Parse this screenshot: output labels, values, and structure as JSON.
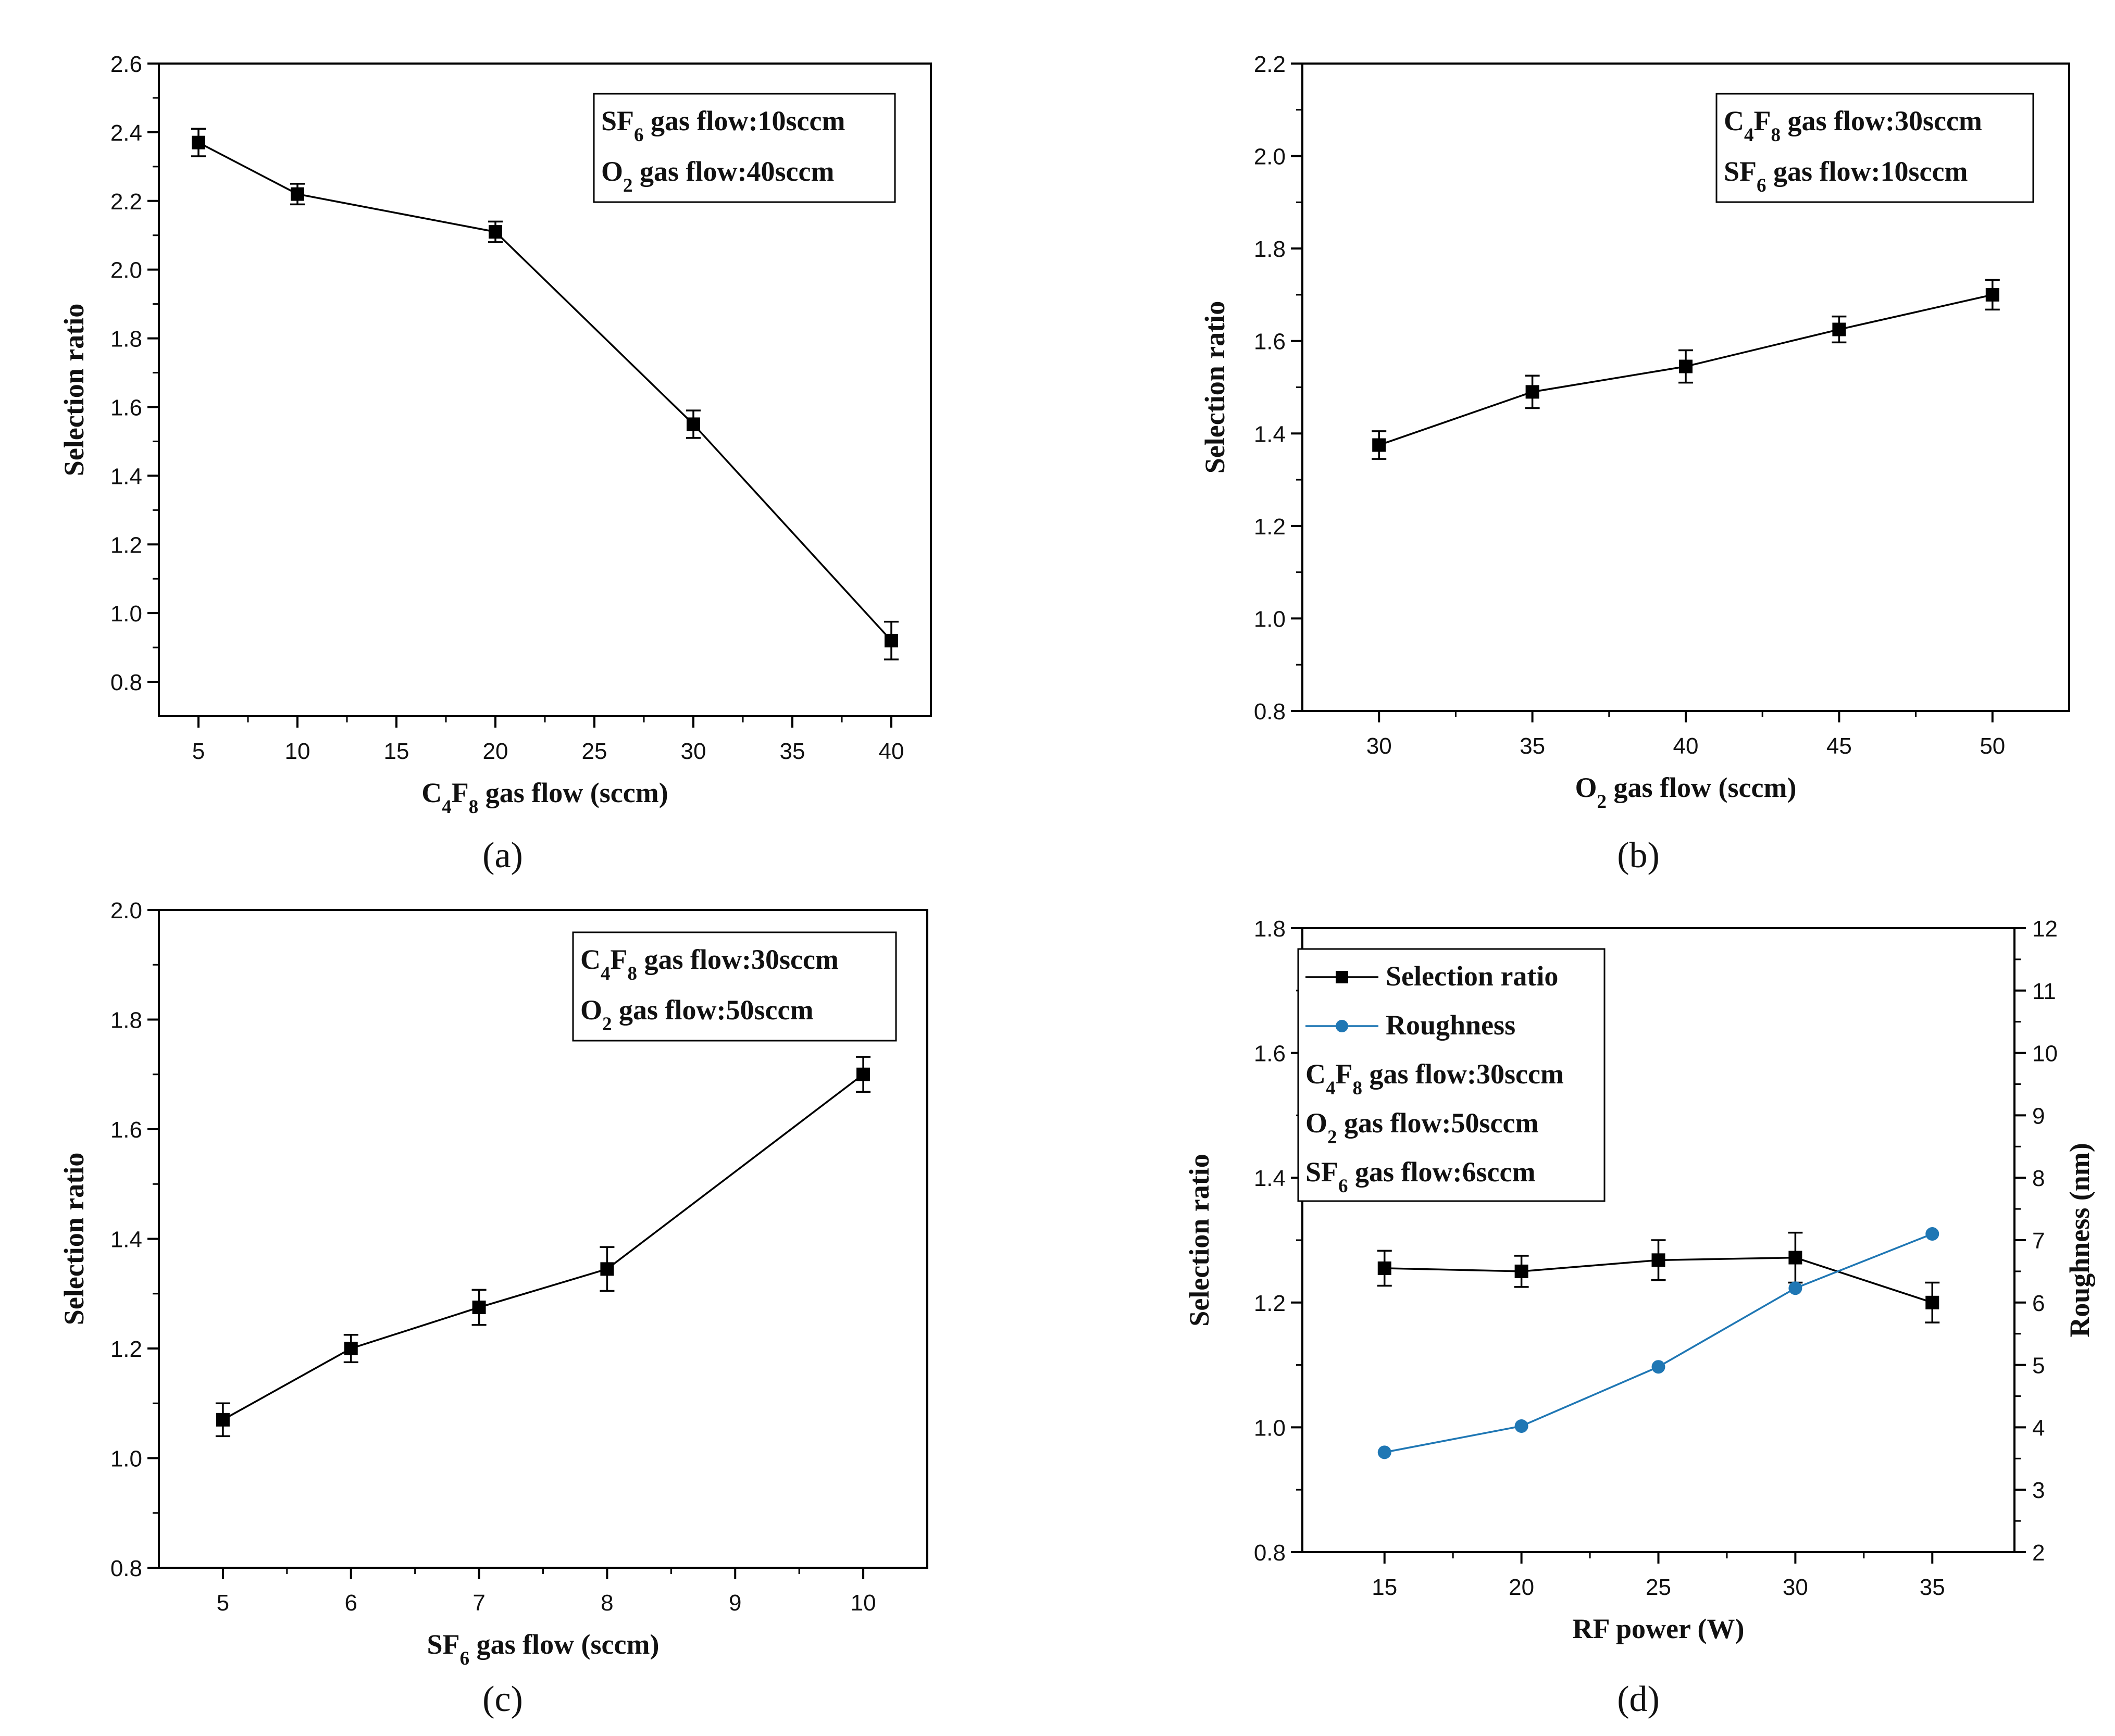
{
  "chart_data": [
    {
      "id": "a",
      "type": "line",
      "panel_label": "(a)",
      "xlabel": "C4F8 gas flow (sccm)",
      "xlabel_parts": [
        {
          "t": "C"
        },
        {
          "t": "4",
          "sub": true
        },
        {
          "t": "F"
        },
        {
          "t": "8",
          "sub": true
        },
        {
          "t": " gas flow (sccm)"
        }
      ],
      "ylabel": "Selection ratio",
      "xlim": [
        3,
        42
      ],
      "ylim": [
        0.7,
        2.6
      ],
      "xticks": [
        5,
        10,
        15,
        20,
        25,
        30,
        35,
        40
      ],
      "yticks": [
        0.8,
        1.0,
        1.2,
        1.4,
        1.6,
        1.8,
        2.0,
        2.2,
        2.4,
        2.6
      ],
      "ytick_labels": [
        "0.8",
        "1.0",
        "1.2",
        "1.4",
        "1.6",
        "1.8",
        "2.0",
        "2.2",
        "2.4",
        "2.6"
      ],
      "legend_position": "top-right",
      "legend": [
        {
          "text": "SF6 gas flow:10sccm",
          "parts": [
            {
              "t": "SF"
            },
            {
              "t": "6",
              "sub": true
            },
            {
              "t": " gas flow:10sccm"
            }
          ]
        },
        {
          "text": "O2 gas flow:40sccm",
          "parts": [
            {
              "t": "O"
            },
            {
              "t": "2",
              "sub": true
            },
            {
              "t": " gas flow:40sccm"
            }
          ]
        }
      ],
      "series": [
        {
          "name": "Selection ratio",
          "color": "#000000",
          "marker": "square",
          "x": [
            5,
            10,
            20,
            30,
            40
          ],
          "y": [
            2.37,
            2.22,
            2.11,
            1.55,
            0.92
          ],
          "yerr": [
            0.04,
            0.03,
            0.03,
            0.04,
            0.055
          ]
        }
      ]
    },
    {
      "id": "b",
      "type": "line",
      "panel_label": "(b)",
      "xlabel": "O2 gas flow (sccm)",
      "xlabel_parts": [
        {
          "t": "O"
        },
        {
          "t": "2",
          "sub": true
        },
        {
          "t": " gas flow (sccm)"
        }
      ],
      "ylabel": "Selection ratio",
      "xlim": [
        27.5,
        52.5
      ],
      "ylim": [
        0.8,
        2.2
      ],
      "xticks": [
        30,
        35,
        40,
        45,
        50
      ],
      "yticks": [
        0.8,
        1.0,
        1.2,
        1.4,
        1.6,
        1.8,
        2.0,
        2.2
      ],
      "ytick_labels": [
        "0.8",
        "1.0",
        "1.2",
        "1.4",
        "1.6",
        "1.8",
        "2.0",
        "2.2"
      ],
      "legend_position": "top-right",
      "legend": [
        {
          "text": "C4F8 gas flow:30sccm",
          "parts": [
            {
              "t": "C"
            },
            {
              "t": "4",
              "sub": true
            },
            {
              "t": "F"
            },
            {
              "t": "8",
              "sub": true
            },
            {
              "t": " gas flow:30sccm"
            }
          ]
        },
        {
          "text": "SF6 gas flow:10sccm",
          "parts": [
            {
              "t": "SF"
            },
            {
              "t": "6",
              "sub": true
            },
            {
              "t": " gas flow:10sccm"
            }
          ]
        }
      ],
      "series": [
        {
          "name": "Selection ratio",
          "color": "#000000",
          "marker": "square",
          "x": [
            30,
            35,
            40,
            45,
            50
          ],
          "y": [
            1.375,
            1.49,
            1.545,
            1.625,
            1.7
          ],
          "yerr": [
            0.03,
            0.035,
            0.035,
            0.028,
            0.032
          ]
        }
      ]
    },
    {
      "id": "c",
      "type": "line",
      "panel_label": "(c)",
      "xlabel": "SF6 gas flow (sccm)",
      "xlabel_parts": [
        {
          "t": "SF"
        },
        {
          "t": "6",
          "sub": true
        },
        {
          "t": " gas flow (sccm)"
        }
      ],
      "ylabel": "Selection ratio",
      "xlim": [
        4.5,
        10.5
      ],
      "ylim": [
        0.8,
        2.0
      ],
      "xticks": [
        5,
        6,
        7,
        8,
        9,
        10
      ],
      "yticks": [
        0.8,
        1.0,
        1.2,
        1.4,
        1.6,
        1.8,
        2.0
      ],
      "ytick_labels": [
        "0.8",
        "1.0",
        "1.2",
        "1.4",
        "1.6",
        "1.8",
        "2.0"
      ],
      "legend_position": "top-right",
      "legend": [
        {
          "text": "C4F8 gas flow:30sccm",
          "parts": [
            {
              "t": "C"
            },
            {
              "t": "4",
              "sub": true
            },
            {
              "t": "F"
            },
            {
              "t": "8",
              "sub": true
            },
            {
              "t": " gas flow:30sccm"
            }
          ]
        },
        {
          "text": "O2 gas flow:50sccm",
          "parts": [
            {
              "t": "O"
            },
            {
              "t": "2",
              "sub": true
            },
            {
              "t": " gas flow:50sccm"
            }
          ]
        }
      ],
      "series": [
        {
          "name": "Selection ratio",
          "color": "#000000",
          "marker": "square",
          "x": [
            5,
            6,
            7,
            8,
            10
          ],
          "y": [
            1.07,
            1.2,
            1.275,
            1.345,
            1.7
          ],
          "yerr": [
            0.03,
            0.025,
            0.032,
            0.04,
            0.032
          ]
        }
      ]
    },
    {
      "id": "d",
      "type": "line",
      "panel_label": "(d)",
      "xlabel": "RF power (W)",
      "xlabel_parts": [
        {
          "t": "RF power (W)"
        }
      ],
      "ylabel": "Selection ratio",
      "ylabel_right": "Roughness (nm)",
      "xlim": [
        12,
        38
      ],
      "ylim": [
        0.8,
        1.8
      ],
      "ylim_right": [
        2,
        12
      ],
      "xticks": [
        15,
        20,
        25,
        30,
        35
      ],
      "yticks": [
        0.8,
        1.0,
        1.2,
        1.4,
        1.6,
        1.8
      ],
      "ytick_labels": [
        "0.8",
        "1.0",
        "1.2",
        "1.4",
        "1.6",
        "1.8"
      ],
      "yticks_right": [
        2,
        3,
        4,
        5,
        6,
        7,
        8,
        9,
        10,
        11,
        12
      ],
      "legend_position": "top-left",
      "legend": [
        {
          "text": "Selection ratio",
          "series": 0
        },
        {
          "text": "Roughness",
          "series": 1
        },
        {
          "text": "C4F8 gas flow:30sccm",
          "parts": [
            {
              "t": "C"
            },
            {
              "t": "4",
              "sub": true
            },
            {
              "t": "F"
            },
            {
              "t": "8",
              "sub": true
            },
            {
              "t": " gas flow:30sccm"
            }
          ]
        },
        {
          "text": "O2 gas flow:50sccm",
          "parts": [
            {
              "t": "O"
            },
            {
              "t": "2",
              "sub": true
            },
            {
              "t": " gas flow:50sccm"
            }
          ]
        },
        {
          "text": "SF6 gas flow:6sccm",
          "parts": [
            {
              "t": "SF"
            },
            {
              "t": "6",
              "sub": true
            },
            {
              "t": " gas flow:6sccm"
            }
          ]
        }
      ],
      "series": [
        {
          "name": "Selection ratio",
          "color": "#000000",
          "marker": "square",
          "axis": "left",
          "x": [
            15,
            20,
            25,
            30,
            35
          ],
          "y": [
            1.255,
            1.25,
            1.268,
            1.272,
            1.2
          ],
          "yerr": [
            0.028,
            0.025,
            0.032,
            0.04,
            0.032
          ]
        },
        {
          "name": "Roughness",
          "color": "#1f77b4",
          "marker": "circle",
          "axis": "right",
          "x": [
            15,
            20,
            25,
            30,
            35
          ],
          "y": [
            3.6,
            4.02,
            4.97,
            6.23,
            7.1
          ],
          "yerr": [
            0,
            0,
            0,
            0,
            0
          ]
        }
      ]
    }
  ]
}
